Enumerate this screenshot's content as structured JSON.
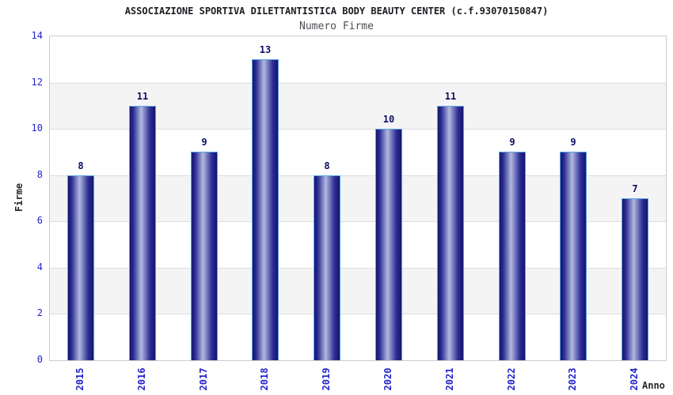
{
  "chart_data": {
    "type": "bar",
    "title": "ASSOCIAZIONE SPORTIVA DILETTANTISTICA BODY BEAUTY CENTER (c.f.93070150847)",
    "subtitle": "Numero Firme",
    "xlabel": "Anno",
    "ylabel": "Firme",
    "categories": [
      "2015",
      "2016",
      "2017",
      "2018",
      "2019",
      "2020",
      "2021",
      "2022",
      "2023",
      "2024"
    ],
    "values": [
      8,
      11,
      9,
      13,
      8,
      10,
      11,
      9,
      9,
      7
    ],
    "ylim": [
      0,
      14
    ],
    "yticks": [
      0,
      2,
      4,
      6,
      8,
      10,
      12,
      14
    ],
    "grid": "horizontal gridlines with alternating gray/white bands every 2 units",
    "legend": "none",
    "colors": {
      "title_color": "#1c1c22",
      "subtitle_color": "#4d4d55",
      "axis_title_color": "#26262b",
      "tick_label": "#2424cc",
      "data_label": "#0d0d66",
      "bar_dark": "#15156e",
      "bar_mid": "#2c2c94",
      "bar_light": "#b2bade",
      "bar_border": "#55a3e4",
      "band_gray": "#f4f4f4",
      "grid_line": "#dddddd",
      "plot_border": "#cccccc"
    }
  }
}
